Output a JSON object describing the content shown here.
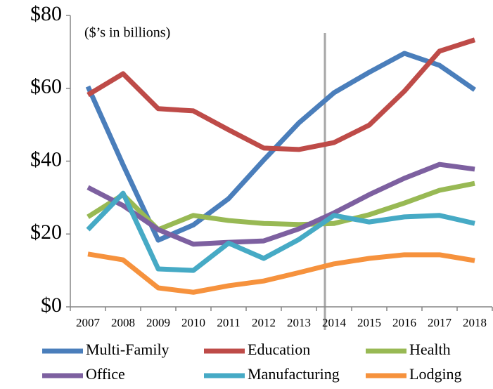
{
  "chart_data": {
    "type": "line",
    "annotation": "($’s in billions)",
    "categories": [
      "2007",
      "2008",
      "2009",
      "2010",
      "2011",
      "2012",
      "2013",
      "2014",
      "2015",
      "2016",
      "2017",
      "2018"
    ],
    "series": [
      {
        "name": "Multi-Family",
        "color": "#4a7ebb",
        "values": [
          60.5,
          39,
          18.3,
          22.5,
          29.7,
          40.3,
          50.5,
          58.8,
          64.4,
          69.6,
          66.3,
          59.6
        ]
      },
      {
        "name": "Education",
        "color": "#be4b48",
        "values": [
          58.2,
          64,
          54.4,
          53.8,
          48.6,
          43.6,
          43.2,
          45.1,
          49.9,
          59.2,
          70.2,
          73.3
        ]
      },
      {
        "name": "Health",
        "color": "#98b954",
        "values": [
          24.7,
          30.8,
          21.2,
          25.1,
          23.7,
          22.9,
          22.6,
          22.9,
          25.3,
          28.5,
          32,
          33.9
        ]
      },
      {
        "name": "Office",
        "color": "#7d60a0",
        "values": [
          32.8,
          27.8,
          21.2,
          17.2,
          17.7,
          18.1,
          21.4,
          25.8,
          30.8,
          35.3,
          39.1,
          37.8
        ]
      },
      {
        "name": "Manufacturing",
        "color": "#46aac5",
        "values": [
          21.2,
          31.2,
          10.4,
          10,
          17.5,
          13.3,
          18.5,
          25.1,
          23.3,
          24.7,
          25.1,
          22.9
        ]
      },
      {
        "name": "Lodging",
        "color": "#f6923d",
        "values": [
          14.5,
          12.9,
          5.2,
          4,
          5.8,
          7.1,
          9.4,
          11.8,
          13.3,
          14.3,
          14.3,
          12.7
        ]
      }
    ],
    "ylim": [
      0,
      80
    ],
    "yticks": [
      {
        "value": 0,
        "label": "$0"
      },
      {
        "value": 20,
        "label": "$20"
      },
      {
        "value": 40,
        "label": "$40"
      },
      {
        "value": 60,
        "label": "$60"
      },
      {
        "value": 80,
        "label": "$80"
      }
    ],
    "grid": false,
    "legend": "bottom"
  }
}
